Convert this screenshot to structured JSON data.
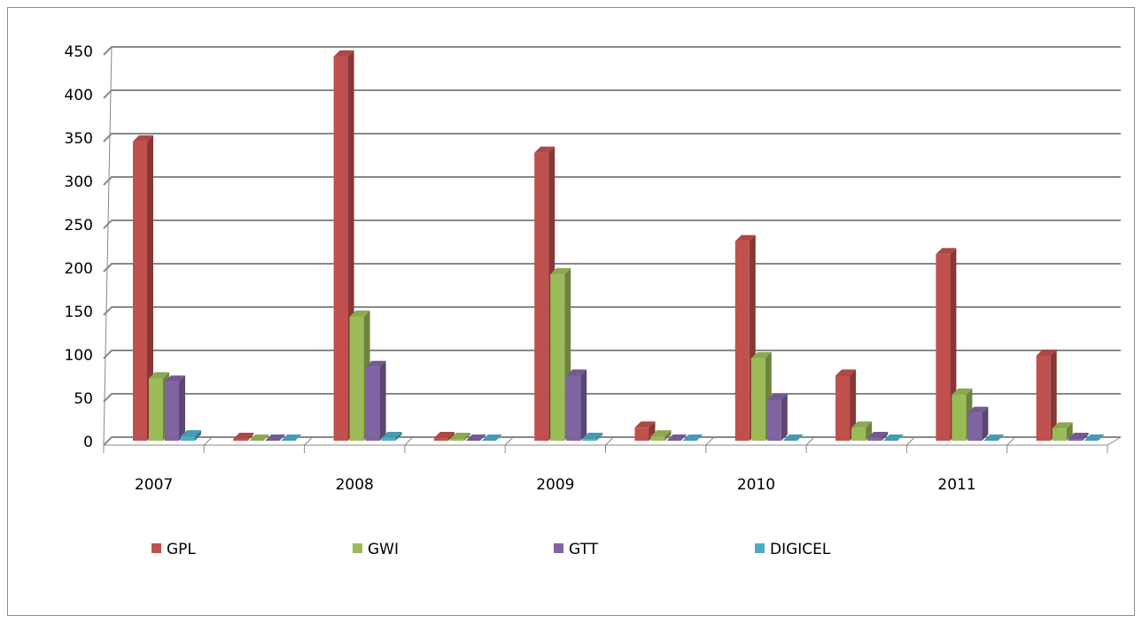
{
  "chart_data": {
    "type": "bar3d",
    "categories": [
      "2007",
      null,
      "2008",
      null,
      "2009",
      null,
      "2010",
      null,
      "2011",
      null
    ],
    "series": [
      {
        "name": "GPL",
        "color": "#c0504d",
        "values": [
          345,
          2,
          443,
          3,
          332,
          15,
          230,
          75,
          215,
          98
        ]
      },
      {
        "name": "GWI",
        "color": "#9bbb59",
        "values": [
          72,
          0,
          143,
          2,
          192,
          5,
          95,
          15,
          53,
          14
        ]
      },
      {
        "name": "GTT",
        "color": "#8064a2",
        "values": [
          68,
          0,
          85,
          0,
          75,
          0,
          47,
          3,
          32,
          2
        ]
      },
      {
        "name": "DIGICEL",
        "color": "#4bacc6",
        "values": [
          5,
          0,
          3,
          0,
          2,
          0,
          0,
          0,
          0,
          0
        ]
      }
    ],
    "ylim": [
      0,
      450
    ],
    "yticks": [
      0,
      50,
      100,
      150,
      200,
      250,
      300,
      350,
      400,
      450
    ],
    "grid": true,
    "legend": "bottom"
  }
}
